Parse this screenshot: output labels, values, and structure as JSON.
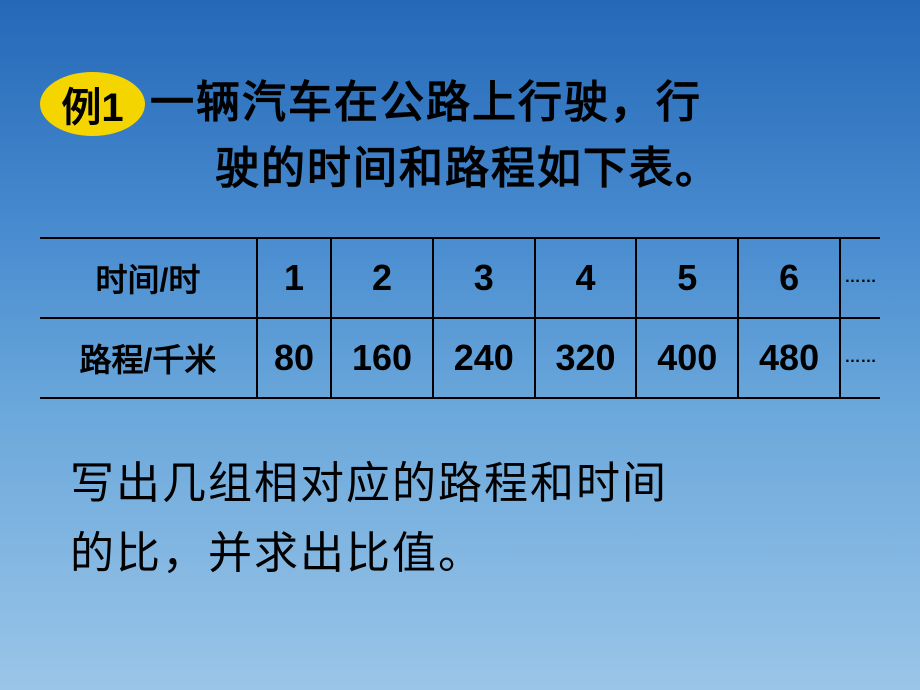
{
  "badge": "例1",
  "title_line1": "一辆汽车在公路上行驶，行",
  "title_line2": "驶的时间和路程如下表。",
  "table": {
    "row1_header": "时间/时",
    "row1_values": [
      "1",
      "2",
      "3",
      "4",
      "5",
      "6"
    ],
    "row2_header": "路程/千米",
    "row2_values": [
      "80",
      "160",
      "240",
      "320",
      "400",
      "480"
    ],
    "ellipsis": "……"
  },
  "bottom_line1": "写出几组相对应的路程和时间",
  "bottom_line2": "的比，并求出比值。",
  "colors": {
    "badge_bg": "#f5d500",
    "text": "#000000",
    "border": "#000000",
    "bg_top": "#2468b8",
    "bg_bottom": "#9ac5e8"
  }
}
